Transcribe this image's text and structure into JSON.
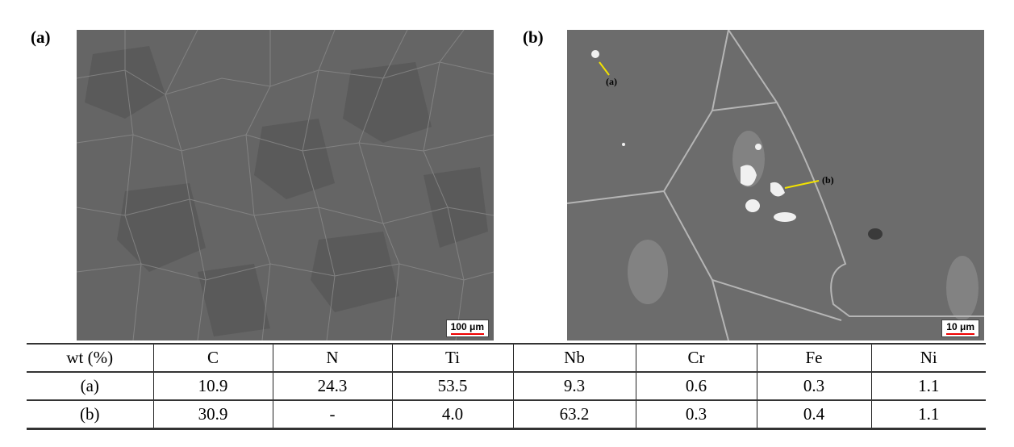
{
  "panels": [
    {
      "label": "(a)",
      "scale_bar": "100 μm"
    },
    {
      "label": "(b)",
      "scale_bar": "10 μm",
      "annotations": [
        "(a)",
        "(b)"
      ]
    }
  ],
  "table": {
    "headers": [
      "wt (%)",
      "C",
      "N",
      "Ti",
      "Nb",
      "Cr",
      "Fe",
      "Ni"
    ],
    "rows": [
      [
        "(a)",
        "10.9",
        "24.3",
        "53.5",
        "9.3",
        "0.6",
        "0.3",
        "1.1"
      ],
      [
        "(b)",
        "30.9",
        "-",
        "4.0",
        "63.2",
        "0.3",
        "0.4",
        "1.1"
      ]
    ]
  },
  "colors": {
    "scale_bar": "#e00000",
    "arrow": "#f2e200",
    "sem_gray": "#6a6a6a"
  }
}
